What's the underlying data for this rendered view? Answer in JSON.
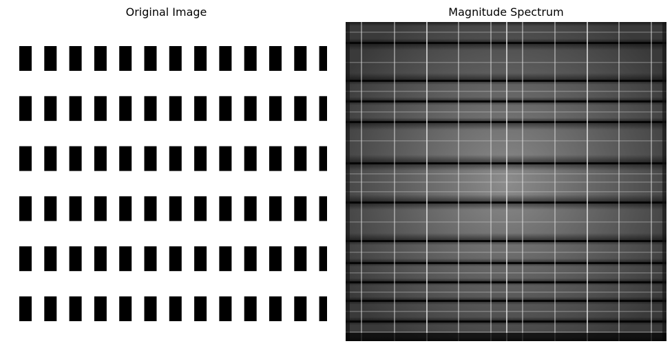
{
  "panels": {
    "left_title": "Original Image",
    "right_title": "Magnitude Spectrum"
  }
}
